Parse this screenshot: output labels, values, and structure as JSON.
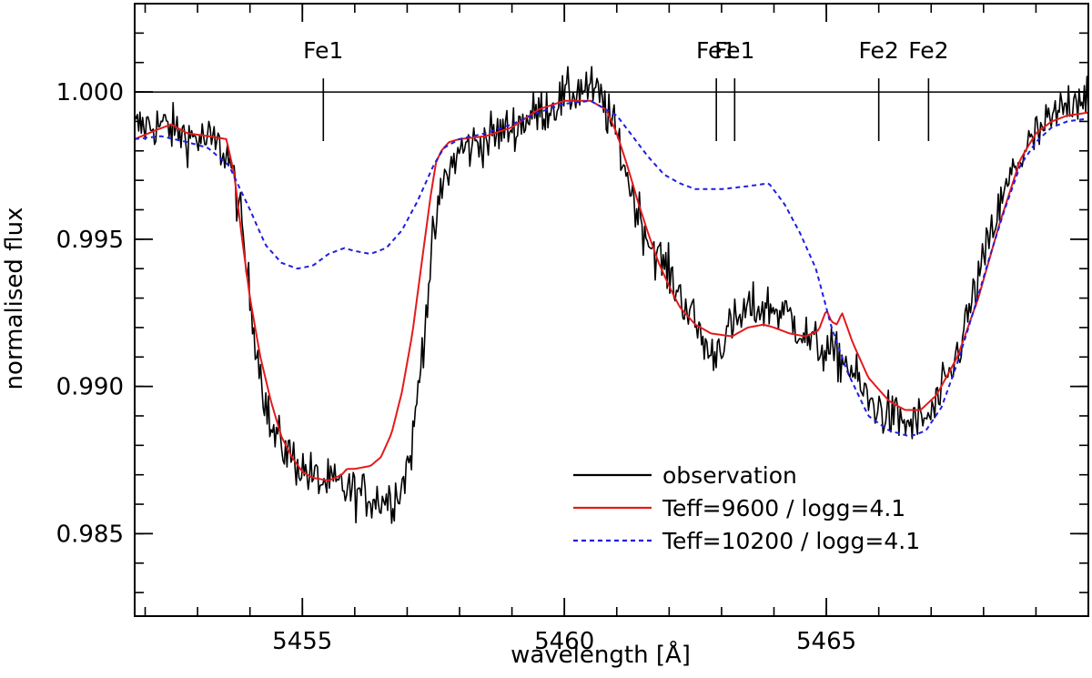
{
  "chart_data": {
    "type": "line",
    "title": "",
    "xlabel": "wavelength [Å]",
    "ylabel": "normalised flux",
    "xlim": [
      5451.8,
      5470.0
    ],
    "ylim": [
      0.9822,
      1.003
    ],
    "x_ticks": [
      5455,
      5460,
      5465
    ],
    "x_tick_labels": [
      "5455",
      "5460",
      "5465"
    ],
    "x_minor_step": 1,
    "y_ticks": [
      0.985,
      0.99,
      0.995,
      1.0
    ],
    "y_tick_labels": [
      "0.985",
      "0.990",
      "0.995",
      "1.000"
    ],
    "y_minor_step": 0.001,
    "grid": false,
    "reference_line": {
      "y": 1.0
    },
    "line_markers": [
      {
        "label": "Fe1",
        "x": 5455.4
      },
      {
        "label": "Fe1",
        "x": 5462.9
      },
      {
        "label": "Fe1",
        "x": 5463.25
      },
      {
        "label": "Fe2",
        "x": 5466.0
      },
      {
        "label": "Fe2",
        "x": 5466.95
      }
    ],
    "legend": {
      "position": "lower-right",
      "entries": [
        {
          "name": "observation",
          "color": "#000000",
          "style": "solid"
        },
        {
          "name": "Teff=9600 / logg=4.1",
          "color": "#e31a1c",
          "style": "solid"
        },
        {
          "name": "Teff=10200 / logg=4.1",
          "color": "#1f1fe0",
          "style": "dashed"
        }
      ]
    },
    "series": [
      {
        "name": "observation",
        "color": "#000000",
        "style": "solid",
        "noise": 0.0008,
        "x": [
          5451.8,
          5452.3,
          5452.8,
          5453.3,
          5453.6,
          5453.8,
          5454.0,
          5454.2,
          5454.4,
          5454.7,
          5455.0,
          5455.3,
          5455.7,
          5456.0,
          5456.4,
          5456.7,
          5456.9,
          5457.1,
          5457.3,
          5457.5,
          5457.7,
          5458.0,
          5458.5,
          5459.0,
          5459.5,
          5460.0,
          5460.4,
          5460.7,
          5461.0,
          5461.3,
          5461.6,
          5462.0,
          5462.4,
          5462.8,
          5463.1,
          5463.5,
          5463.9,
          5464.3,
          5464.7,
          5465.0,
          5465.4,
          5465.8,
          5466.2,
          5466.6,
          5467.0,
          5467.4,
          5467.8,
          5468.2,
          5468.6,
          5469.0,
          5469.4,
          5469.7,
          5470.0
        ],
        "y": [
          0.9988,
          0.9989,
          0.9985,
          0.9983,
          0.9978,
          0.996,
          0.993,
          0.9905,
          0.9885,
          0.9878,
          0.9872,
          0.9868,
          0.9866,
          0.9864,
          0.9862,
          0.9862,
          0.9866,
          0.988,
          0.9915,
          0.995,
          0.997,
          0.998,
          0.9984,
          0.9988,
          0.9993,
          0.9998,
          1.0002,
          0.9998,
          0.9985,
          0.9965,
          0.995,
          0.9938,
          0.9925,
          0.991,
          0.9918,
          0.9926,
          0.9927,
          0.9924,
          0.9915,
          0.9912,
          0.9908,
          0.9895,
          0.989,
          0.9887,
          0.989,
          0.9905,
          0.993,
          0.9955,
          0.9975,
          0.9985,
          0.9992,
          0.9998,
          1.0
        ]
      },
      {
        "name": "Teff=9600 / logg=4.1",
        "color": "#e31a1c",
        "style": "solid",
        "x": [
          5451.8,
          5452.2,
          5452.5,
          5452.8,
          5453.2,
          5453.55,
          5453.7,
          5453.85,
          5454.0,
          5454.2,
          5454.4,
          5454.6,
          5454.8,
          5455.0,
          5455.2,
          5455.5,
          5455.75,
          5455.85,
          5456.0,
          5456.3,
          5456.5,
          5456.7,
          5456.9,
          5457.1,
          5457.3,
          5457.45,
          5457.55,
          5457.65,
          5457.8,
          5458.0,
          5458.5,
          5459.0,
          5459.5,
          5460.0,
          5460.5,
          5460.8,
          5461.0,
          5461.2,
          5461.4,
          5461.6,
          5461.8,
          5462.0,
          5462.2,
          5462.5,
          5462.8,
          5463.2,
          5463.5,
          5463.8,
          5464.0,
          5464.3,
          5464.6,
          5464.85,
          5465.0,
          5465.1,
          5465.2,
          5465.3,
          5465.5,
          5465.8,
          5466.2,
          5466.5,
          5466.8,
          5467.1,
          5467.5,
          5467.9,
          5468.3,
          5468.7,
          5469.0,
          5469.3,
          5469.6,
          5470.0
        ],
        "y": [
          0.9984,
          0.9987,
          0.9989,
          0.9986,
          0.9985,
          0.9984,
          0.9972,
          0.995,
          0.993,
          0.991,
          0.9895,
          0.9883,
          0.9876,
          0.9871,
          0.9869,
          0.9868,
          0.987,
          0.9872,
          0.9872,
          0.9873,
          0.9876,
          0.9884,
          0.9898,
          0.9918,
          0.9945,
          0.9965,
          0.9976,
          0.998,
          0.9983,
          0.9984,
          0.9985,
          0.9988,
          0.9994,
          0.9997,
          0.9997,
          0.9994,
          0.9986,
          0.9975,
          0.9963,
          0.9952,
          0.9942,
          0.9934,
          0.9927,
          0.9921,
          0.9918,
          0.9917,
          0.992,
          0.9921,
          0.992,
          0.9918,
          0.9917,
          0.9919,
          0.9926,
          0.9922,
          0.9921,
          0.9925,
          0.9915,
          0.9903,
          0.9895,
          0.9892,
          0.9892,
          0.9897,
          0.991,
          0.993,
          0.9955,
          0.9977,
          0.9986,
          0.999,
          0.9992,
          0.9993
        ]
      },
      {
        "name": "Teff=10200 / logg=4.1",
        "color": "#1f1fe0",
        "style": "dashed",
        "x": [
          5451.8,
          5452.3,
          5452.8,
          5453.2,
          5453.6,
          5454.0,
          5454.3,
          5454.6,
          5454.9,
          5455.2,
          5455.5,
          5455.8,
          5456.0,
          5456.3,
          5456.6,
          5456.9,
          5457.2,
          5457.5,
          5457.7,
          5458.0,
          5458.5,
          5459.0,
          5459.5,
          5460.0,
          5460.5,
          5461.0,
          5461.3,
          5461.6,
          5461.9,
          5462.2,
          5462.5,
          5463.0,
          5463.5,
          5463.9,
          5464.2,
          5464.5,
          5464.8,
          5465.1,
          5465.4,
          5465.8,
          5466.2,
          5466.6,
          5466.9,
          5467.2,
          5467.5,
          5467.8,
          5468.1,
          5468.4,
          5468.7,
          5469.0,
          5469.3,
          5469.6,
          5470.0
        ],
        "y": [
          0.9984,
          0.9985,
          0.9983,
          0.9981,
          0.9975,
          0.996,
          0.9948,
          0.9942,
          0.994,
          0.9941,
          0.9945,
          0.9947,
          0.9946,
          0.9945,
          0.9947,
          0.9953,
          0.9963,
          0.9975,
          0.9981,
          0.9984,
          0.9986,
          0.9989,
          0.9993,
          0.9996,
          0.9997,
          0.9992,
          0.9985,
          0.9978,
          0.9972,
          0.9969,
          0.9967,
          0.9967,
          0.9968,
          0.9969,
          0.9962,
          0.9952,
          0.994,
          0.992,
          0.9905,
          0.989,
          0.9885,
          0.9883,
          0.9885,
          0.9893,
          0.9908,
          0.9925,
          0.9943,
          0.996,
          0.9975,
          0.9983,
          0.9988,
          0.999,
          0.9991
        ]
      }
    ]
  }
}
